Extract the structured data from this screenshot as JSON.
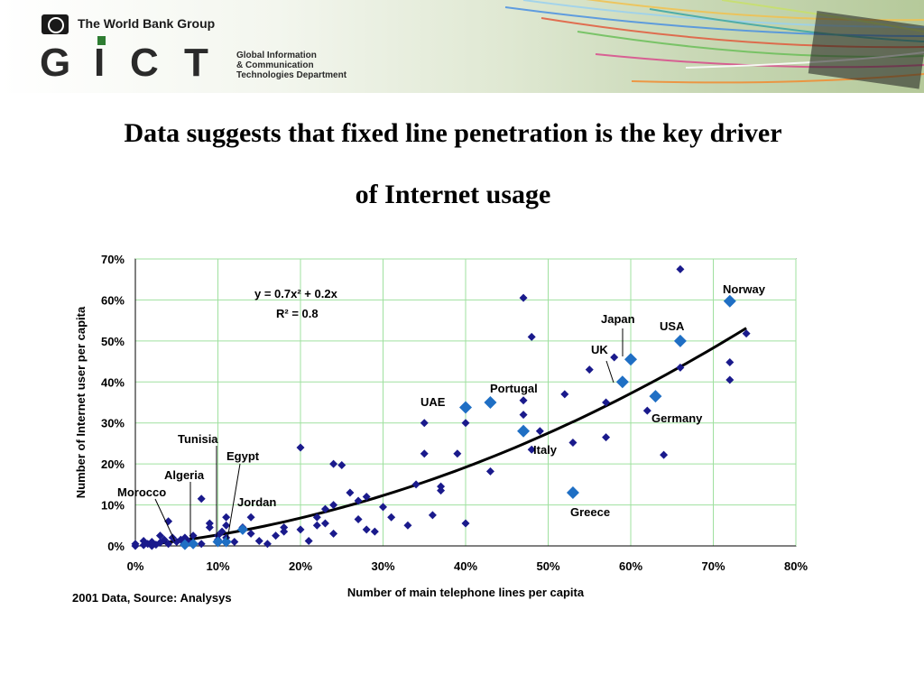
{
  "banner": {
    "org_name": "The World Bank Group",
    "logo_letters": [
      "G",
      "I",
      "C",
      "T"
    ],
    "department_lines": [
      "Global Information",
      "& Communication",
      "Technologies Department"
    ]
  },
  "slide": {
    "title_line1": "Data suggests that fixed line penetration is the key driver",
    "title_line2": "of Internet usage",
    "footnote": "2001 Data, Source: Analysys"
  },
  "chart_data": {
    "type": "scatter",
    "xlabel": "Number of main telephone lines per capita",
    "ylabel": "Number of Internet user per capita",
    "xlim": [
      0,
      0.8
    ],
    "ylim": [
      0,
      0.7
    ],
    "x_ticks": [
      0,
      0.1,
      0.2,
      0.3,
      0.4,
      0.5,
      0.6,
      0.7,
      0.8
    ],
    "x_tick_labels": [
      "0%",
      "10%",
      "20%",
      "30%",
      "40%",
      "50%",
      "60%",
      "70%",
      "80%"
    ],
    "y_ticks": [
      0,
      0.1,
      0.2,
      0.3,
      0.4,
      0.5,
      0.6,
      0.7
    ],
    "y_tick_labels": [
      "0%",
      "10%",
      "20%",
      "30%",
      "40%",
      "50%",
      "60%",
      "70%"
    ],
    "grid": true,
    "colors": {
      "points": "#1a1a8c",
      "highlight": "#1f6fc4",
      "trend": "#000000",
      "grid": "#9fe09f"
    },
    "trendline": {
      "equation": "y = 0.7x² + 0.2x",
      "r_squared": "R² = 0.8",
      "coefficients": {
        "a": 0.7,
        "b": 0.2
      },
      "x_range": [
        0.01,
        0.74
      ]
    },
    "labeled_points": [
      {
        "name": "Norway",
        "x": 0.72,
        "y": 0.597
      },
      {
        "name": "USA",
        "x": 0.66,
        "y": 0.5
      },
      {
        "name": "Japan",
        "x": 0.6,
        "y": 0.455
      },
      {
        "name": "UK",
        "x": 0.59,
        "y": 0.4
      },
      {
        "name": "Germany",
        "x": 0.63,
        "y": 0.365
      },
      {
        "name": "Portugal",
        "x": 0.43,
        "y": 0.35
      },
      {
        "name": "UAE",
        "x": 0.4,
        "y": 0.338
      },
      {
        "name": "Italy",
        "x": 0.47,
        "y": 0.28
      },
      {
        "name": "Greece",
        "x": 0.53,
        "y": 0.13
      },
      {
        "name": "Tunisia",
        "x": 0.1,
        "y": 0.01
      },
      {
        "name": "Egypt",
        "x": 0.11,
        "y": 0.01
      },
      {
        "name": "Algeria",
        "x": 0.07,
        "y": 0.005
      },
      {
        "name": "Morocco",
        "x": 0.06,
        "y": 0.003
      },
      {
        "name": "Jordan",
        "x": 0.13,
        "y": 0.04
      }
    ],
    "other_points": [
      [
        0.0,
        0.0
      ],
      [
        0.0,
        0.005
      ],
      [
        0.01,
        0.002
      ],
      [
        0.01,
        0.012
      ],
      [
        0.015,
        0.005
      ],
      [
        0.02,
        0.0
      ],
      [
        0.02,
        0.01
      ],
      [
        0.025,
        0.003
      ],
      [
        0.03,
        0.008
      ],
      [
        0.03,
        0.025
      ],
      [
        0.035,
        0.015
      ],
      [
        0.04,
        0.06
      ],
      [
        0.04,
        0.005
      ],
      [
        0.045,
        0.02
      ],
      [
        0.05,
        0.01
      ],
      [
        0.055,
        0.015
      ],
      [
        0.06,
        0.02
      ],
      [
        0.065,
        0.01
      ],
      [
        0.07,
        0.025
      ],
      [
        0.08,
        0.115
      ],
      [
        0.08,
        0.005
      ],
      [
        0.09,
        0.055
      ],
      [
        0.09,
        0.045
      ],
      [
        0.1,
        0.025
      ],
      [
        0.1,
        0.015
      ],
      [
        0.105,
        0.035
      ],
      [
        0.11,
        0.07
      ],
      [
        0.11,
        0.05
      ],
      [
        0.11,
        0.02
      ],
      [
        0.12,
        0.01
      ],
      [
        0.13,
        0.045
      ],
      [
        0.14,
        0.07
      ],
      [
        0.14,
        0.03
      ],
      [
        0.15,
        0.012
      ],
      [
        0.16,
        0.005
      ],
      [
        0.17,
        0.025
      ],
      [
        0.18,
        0.035
      ],
      [
        0.18,
        0.045
      ],
      [
        0.2,
        0.24
      ],
      [
        0.2,
        0.04
      ],
      [
        0.21,
        0.012
      ],
      [
        0.22,
        0.05
      ],
      [
        0.22,
        0.07
      ],
      [
        0.23,
        0.09
      ],
      [
        0.23,
        0.055
      ],
      [
        0.24,
        0.2
      ],
      [
        0.24,
        0.1
      ],
      [
        0.24,
        0.03
      ],
      [
        0.25,
        0.197
      ],
      [
        0.26,
        0.13
      ],
      [
        0.27,
        0.11
      ],
      [
        0.27,
        0.065
      ],
      [
        0.28,
        0.12
      ],
      [
        0.28,
        0.04
      ],
      [
        0.29,
        0.035
      ],
      [
        0.3,
        0.095
      ],
      [
        0.31,
        0.07
      ],
      [
        0.33,
        0.05
      ],
      [
        0.34,
        0.15
      ],
      [
        0.35,
        0.3
      ],
      [
        0.35,
        0.225
      ],
      [
        0.36,
        0.075
      ],
      [
        0.37,
        0.145
      ],
      [
        0.37,
        0.135
      ],
      [
        0.39,
        0.225
      ],
      [
        0.4,
        0.3
      ],
      [
        0.4,
        0.055
      ],
      [
        0.43,
        0.182
      ],
      [
        0.47,
        0.605
      ],
      [
        0.47,
        0.355
      ],
      [
        0.47,
        0.32
      ],
      [
        0.48,
        0.51
      ],
      [
        0.48,
        0.235
      ],
      [
        0.49,
        0.28
      ],
      [
        0.52,
        0.37
      ],
      [
        0.53,
        0.252
      ],
      [
        0.55,
        0.43
      ],
      [
        0.57,
        0.35
      ],
      [
        0.57,
        0.265
      ],
      [
        0.58,
        0.46
      ],
      [
        0.62,
        0.33
      ],
      [
        0.64,
        0.222
      ],
      [
        0.66,
        0.675
      ],
      [
        0.66,
        0.435
      ],
      [
        0.72,
        0.448
      ],
      [
        0.72,
        0.405
      ],
      [
        0.74,
        0.518
      ]
    ]
  }
}
